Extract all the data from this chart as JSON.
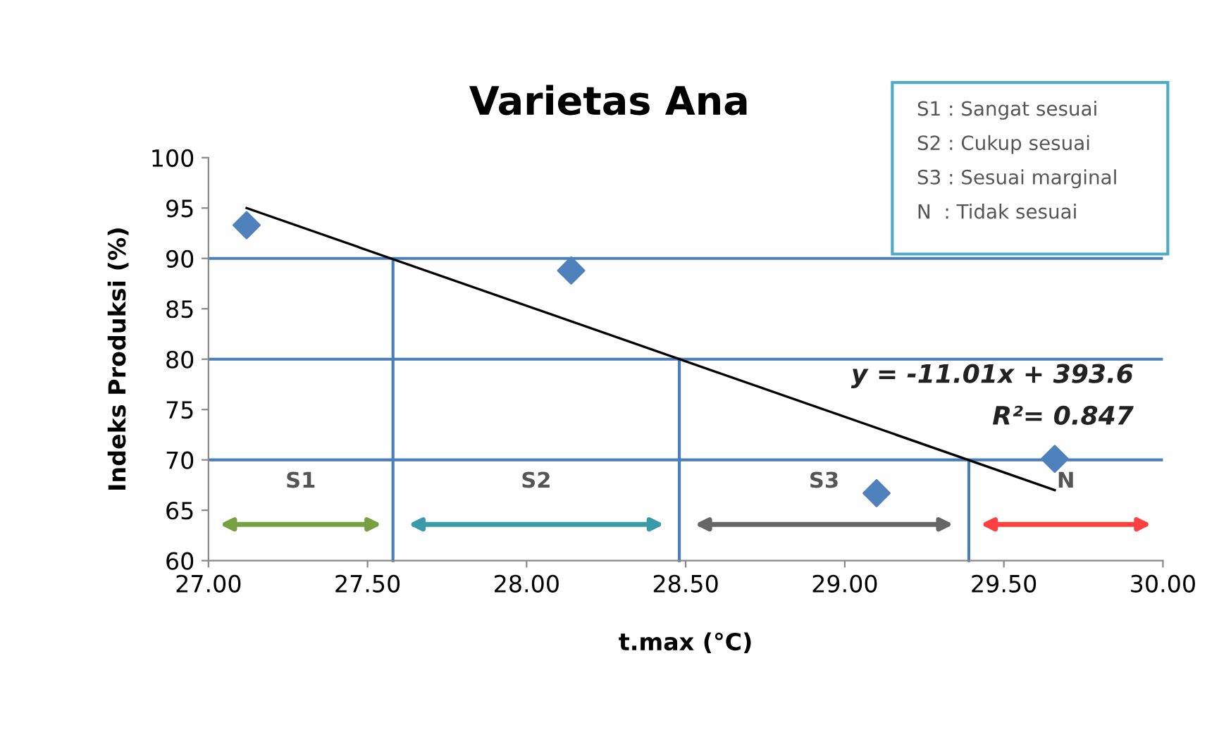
{
  "chart_data": {
    "type": "scatter",
    "title": "Varietas Ana",
    "xlabel": "t.max (°C)",
    "ylabel": "Indeks Produksi (%)",
    "xlim": [
      27.0,
      30.0
    ],
    "ylim": [
      60,
      100
    ],
    "xticks": [
      {
        "value": 27.0,
        "label": "27.00"
      },
      {
        "value": 27.5,
        "label": "27.50"
      },
      {
        "value": 28.0,
        "label": "28.00"
      },
      {
        "value": 28.5,
        "label": "28.50"
      },
      {
        "value": 29.0,
        "label": "29.00"
      },
      {
        "value": 29.5,
        "label": "29.50"
      },
      {
        "value": 30.0,
        "label": "30.00"
      }
    ],
    "yticks": [
      60,
      65,
      70,
      75,
      80,
      85,
      90,
      95,
      100
    ],
    "grid": false,
    "legend": false,
    "marker": "diamond",
    "series": [
      {
        "color": "#4f81bd",
        "x": [
          27.12,
          28.14,
          29.1,
          29.66
        ],
        "values": [
          93.3,
          88.8,
          66.7,
          70.1
        ]
      },
      {
        "type": "line",
        "color": "#000000",
        "marker": "none",
        "x": [
          27.12,
          29.66
        ],
        "values": [
          95.0,
          67.0
        ]
      }
    ],
    "ref_lines": [
      {
        "axis": "y",
        "value": 90,
        "color": "#4a7ebb"
      },
      {
        "axis": "y",
        "value": 80,
        "color": "#4a7ebb"
      },
      {
        "axis": "y",
        "value": 70,
        "color": "#4a7ebb"
      },
      {
        "axis": "x",
        "value": 27.58,
        "color": "#4a7ebb"
      },
      {
        "axis": "x",
        "value": 28.48,
        "color": "#4a7ebb"
      },
      {
        "axis": "x",
        "value": 29.39,
        "color": "#4a7ebb"
      }
    ],
    "annotations": [
      "S1 : Sangat sesuai",
      "S2 : Cukup sesuai",
      "S3 : Sesuai marginal",
      "N  : Tidak sesuai",
      "y = -11.01x + 393.6",
      "R²= 0.847",
      "S1",
      "S2",
      "S3",
      "N"
    ]
  }
}
